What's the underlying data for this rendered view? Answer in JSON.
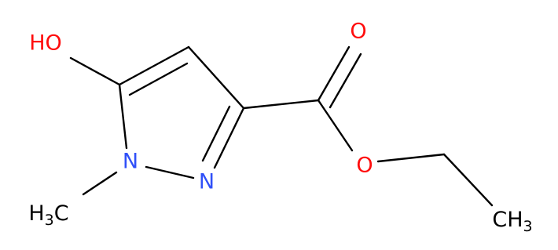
{
  "molecule": {
    "atoms": [
      {
        "label": "HO"
      },
      {
        "label": "N"
      },
      {
        "label": "N"
      },
      {
        "label": "O"
      },
      {
        "label": "O"
      },
      {
        "label": {
          "main": "H",
          "sub": "3",
          "end": "C"
        }
      },
      {
        "label": {
          "main": "CH",
          "sub": "3"
        }
      }
    ]
  }
}
